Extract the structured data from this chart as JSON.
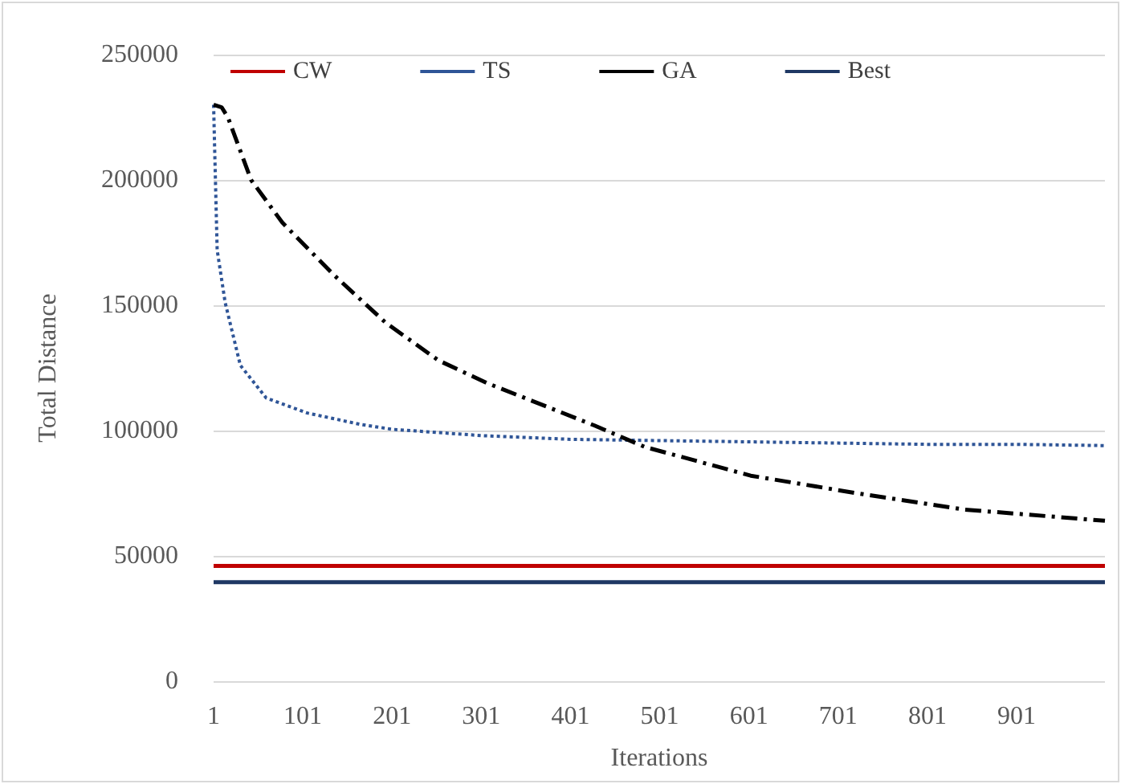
{
  "chart_data": {
    "type": "line",
    "xlabel": "Iterations",
    "ylabel": "Total Distance",
    "xlim": [
      1,
      1000
    ],
    "xticks": [
      1,
      101,
      201,
      301,
      401,
      501,
      601,
      701,
      801,
      901
    ],
    "ylim": [
      0,
      250000
    ],
    "yticks": [
      0,
      50000,
      100000,
      150000,
      200000,
      250000
    ],
    "grid": "y",
    "legend": "top",
    "marker": "none",
    "series": [
      {
        "name": "CW",
        "color": "#c00000",
        "line_style": "solid",
        "x": [
          1,
          1000
        ],
        "values": [
          46000,
          46000
        ]
      },
      {
        "name": "TS",
        "color": "#2f5597",
        "line_style": "dotted",
        "x": [
          1,
          2,
          5,
          14,
          31,
          60,
          106,
          165,
          201,
          301,
          401,
          501,
          601,
          701,
          801,
          901,
          1000
        ],
        "values": [
          230000,
          215000,
          172000,
          151000,
          126000,
          113000,
          107000,
          102500,
          100500,
          98000,
          96500,
          96000,
          95500,
          95000,
          94500,
          94500,
          94000
        ]
      },
      {
        "name": "GA",
        "color": "#000000",
        "line_style": "dashed",
        "x": [
          1,
          10,
          17,
          43,
          78,
          136,
          194,
          253,
          307,
          428,
          484,
          603,
          722,
          842,
          1000
        ],
        "values": [
          230000,
          229000,
          225000,
          200000,
          183000,
          162000,
          143000,
          128000,
          119000,
          102000,
          93500,
          82000,
          75000,
          68500,
          64000
        ]
      },
      {
        "name": "Best",
        "color": "#1f3864",
        "line_style": "solid",
        "x": [
          1,
          1000
        ],
        "values": [
          39500,
          39500
        ]
      }
    ]
  }
}
